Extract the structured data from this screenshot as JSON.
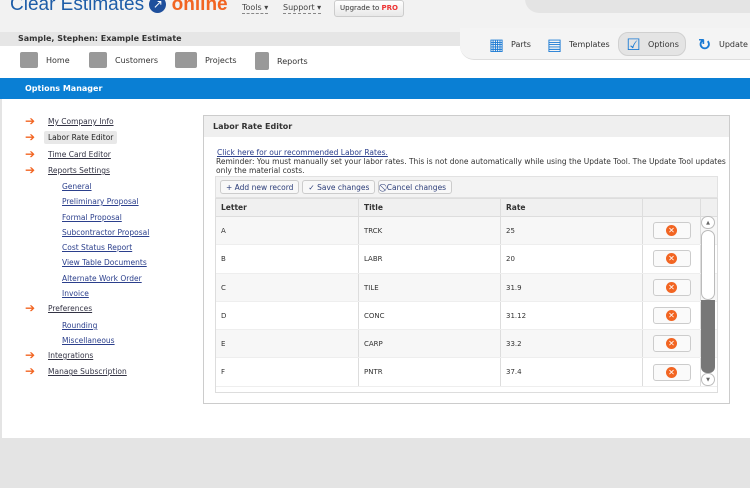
{
  "brand": {
    "name": "Clear Estimates",
    "suffix": "online"
  },
  "top_menu": {
    "tools": "Tools ▾",
    "support": "Support ▾",
    "upgrade_prefix": "Upgrade to ",
    "upgrade_pro": "PRO"
  },
  "estimate_title": "Sample, Stephen: Example Estimate",
  "nav": [
    {
      "label": "Home",
      "icon": "home-icon"
    },
    {
      "label": "Customers",
      "icon": "users-icon"
    },
    {
      "label": "Projects",
      "icon": "toolbox-icon"
    },
    {
      "label": "Reports",
      "icon": "clipboard-icon"
    }
  ],
  "right_nav": [
    {
      "label": "Parts",
      "icon": "grid-icon"
    },
    {
      "label": "Templates",
      "icon": "notebook-icon"
    },
    {
      "label": "Options",
      "icon": "checkbox-icon",
      "active": true
    },
    {
      "label": "Update",
      "icon": "refresh-icon"
    }
  ],
  "section_title": "Options Manager",
  "sidebar": {
    "my_company": "My Company Info",
    "labor": "Labor Rate Editor",
    "timecard": "Time Card Editor",
    "reports": "Reports Settings",
    "report_items": [
      "General",
      "Preliminary Proposal",
      "Formal Proposal",
      "Subcontractor Proposal",
      "Cost Status Report",
      "View Table Documents",
      "Alternate Work Order",
      "Invoice"
    ],
    "preferences": "Preferences",
    "pref_items": [
      "Rounding",
      "Miscellaneous"
    ],
    "integrations": "Integrations",
    "subscription": "Manage Subscription"
  },
  "panel": {
    "title": "Labor Rate Editor",
    "link": "Click here for our recommended Labor Rates.",
    "reminder": "Reminder: You must manually set your labor rates. This is not done automatically while using the Update Tool. The Update Tool updates only the material costs.",
    "toolbar": {
      "add": "+ Add new record",
      "save": "✓ Save changes",
      "cancel": "⃠ Cancel changes"
    },
    "columns": [
      "Letter",
      "Title",
      "Rate"
    ],
    "rows": [
      [
        "A",
        "TRCK",
        "25"
      ],
      [
        "B",
        "LABR",
        "20"
      ],
      [
        "C",
        "TILE",
        "31.9"
      ],
      [
        "D",
        "CONC",
        "31.12"
      ],
      [
        "E",
        "CARP",
        "33.2"
      ],
      [
        "F",
        "PNTR",
        "37.4"
      ]
    ]
  },
  "colors": {
    "accent": "#0a7fd4",
    "orange": "#f26522"
  }
}
